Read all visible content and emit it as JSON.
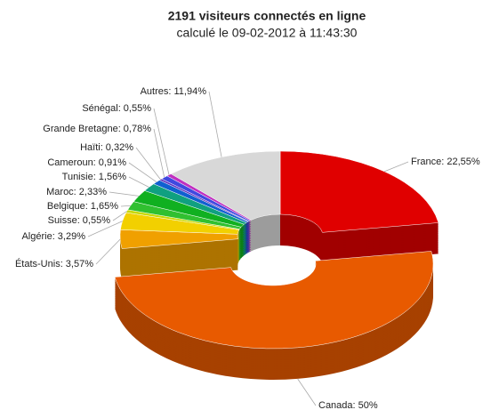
{
  "chart_data": {
    "type": "donut3d",
    "title": "2191 visiteurs connectés en ligne",
    "subtitle": "calculé le 09-02-2012 à 11:43:30",
    "categories": [
      "France",
      "Canada",
      "États-Unis",
      "Algérie",
      "Suisse",
      "Belgique",
      "Maroc",
      "Tunisie",
      "Cameroun",
      "Haïti",
      "Grande Bretagne",
      "Sénégal",
      "Autres"
    ],
    "values": [
      22.55,
      50,
      3.57,
      3.29,
      0.55,
      1.65,
      2.33,
      1.56,
      0.91,
      0.32,
      0.78,
      0.55,
      11.94
    ],
    "value_labels": [
      "France: 22,55%",
      "Canada: 50%",
      "États-Unis: 3,57%",
      "Algérie: 3,29%",
      "Suisse: 0,55%",
      "Belgique: 1,65%",
      "Maroc: 2,33%",
      "Tunisie: 1,56%",
      "Cameroun: 0,91%",
      "Haïti: 0,32%",
      "Grande Bretagne: 0,78%",
      "Sénégal: 0,55%",
      "Autres: 11,94%"
    ],
    "colors": [
      "#e00000",
      "#e85a00",
      "#f0a000",
      "#f2d000",
      "#c8d800",
      "#30c030",
      "#10b020",
      "#10a080",
      "#1060d0",
      "#6030c0",
      "#4048e0",
      "#c030c0",
      "#d8d8d8"
    ]
  }
}
